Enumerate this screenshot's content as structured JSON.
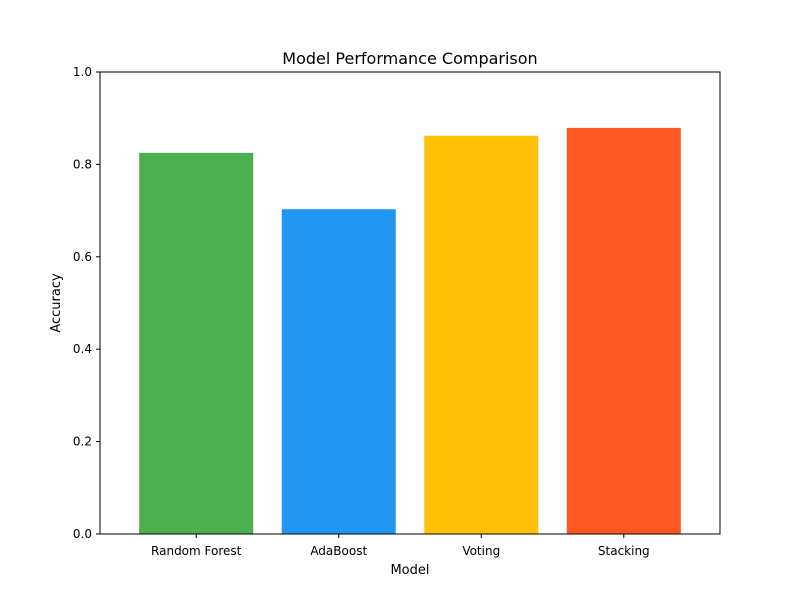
{
  "chart_data": {
    "type": "bar",
    "title": "Model Performance Comparison",
    "xlabel": "Model",
    "ylabel": "Accuracy",
    "categories": [
      "Random Forest",
      "AdaBoost",
      "Voting",
      "Stacking"
    ],
    "values": [
      0.825,
      0.703,
      0.862,
      0.879
    ],
    "colors": [
      "#4caf50",
      "#2196f3",
      "#ffc107",
      "#ff5722"
    ],
    "ylim": [
      0,
      1.0
    ],
    "yticks": [
      0.0,
      0.2,
      0.4,
      0.6,
      0.8,
      1.0
    ],
    "ytick_labels": [
      "0.0",
      "0.2",
      "0.4",
      "0.6",
      "0.8",
      "1.0"
    ],
    "grid": false,
    "legend": "none"
  }
}
